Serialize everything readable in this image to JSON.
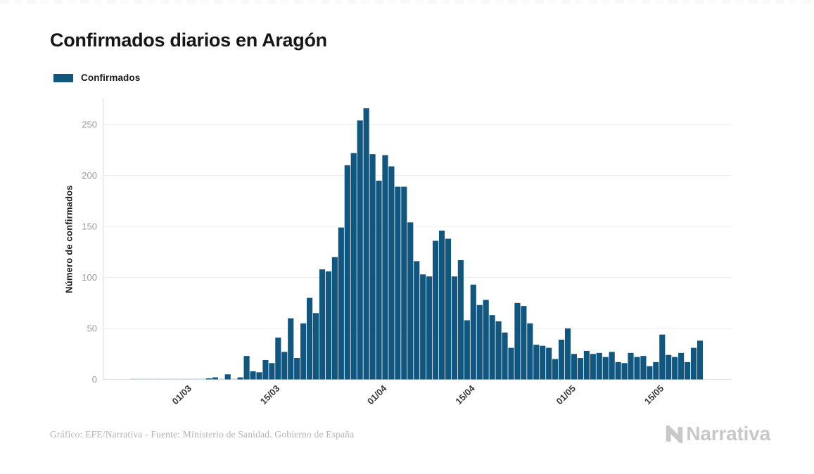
{
  "title": "Confirmados diarios en Aragón",
  "legend": {
    "label": "Confirmados",
    "swatch_color": "#10567E"
  },
  "footer": {
    "credit": "Gráfico: EFE/Narrativa - Fuente: Ministerio de Sanidad. Gobierno de España",
    "brand": "Narrativa",
    "brand_color": "#c8c8c8",
    "brand_mark": "narrativa-n-logo"
  },
  "chart_data": {
    "type": "bar",
    "title": "Confirmados diarios en Aragón",
    "series_name": "Confirmados",
    "xlabel": "",
    "ylabel": "Número de confirmados",
    "bar_color": "#10567E",
    "grid": true,
    "legend_position": "top-left",
    "ylim": [
      0,
      275
    ],
    "y_ticks": [
      0,
      50,
      100,
      150,
      200,
      250
    ],
    "x_tick_labels": [
      "01/03",
      "15/03",
      "01/04",
      "15/04",
      "01/05",
      "15/05"
    ],
    "categories": [
      "21/02",
      "22/02",
      "23/02",
      "24/02",
      "25/02",
      "26/02",
      "27/02",
      "28/02",
      "29/02",
      "01/03",
      "02/03",
      "03/03",
      "04/03",
      "05/03",
      "06/03",
      "07/03",
      "08/03",
      "09/03",
      "10/03",
      "11/03",
      "12/03",
      "13/03",
      "14/03",
      "15/03",
      "16/03",
      "17/03",
      "18/03",
      "19/03",
      "20/03",
      "21/03",
      "22/03",
      "23/03",
      "24/03",
      "25/03",
      "26/03",
      "27/03",
      "28/03",
      "29/03",
      "30/03",
      "31/03",
      "01/04",
      "02/04",
      "03/04",
      "04/04",
      "05/04",
      "06/04",
      "07/04",
      "08/04",
      "09/04",
      "10/04",
      "11/04",
      "12/04",
      "13/04",
      "14/04",
      "15/04",
      "16/04",
      "17/04",
      "18/04",
      "19/04",
      "20/04",
      "21/04",
      "22/04",
      "23/04",
      "24/04",
      "25/04",
      "26/04",
      "27/04",
      "28/04",
      "29/04",
      "30/04",
      "01/05",
      "02/05",
      "03/05",
      "04/05",
      "05/05",
      "06/05",
      "07/05",
      "08/05",
      "09/05",
      "10/05",
      "11/05",
      "12/05",
      "13/05",
      "14/05",
      "15/05",
      "16/05",
      "17/05",
      "18/05",
      "19/05",
      "20/05",
      "21/05"
    ],
    "values": [
      0,
      0,
      0,
      0,
      0,
      0,
      0,
      0,
      0,
      0,
      0,
      0,
      1,
      2,
      0,
      5,
      0,
      2,
      23,
      8,
      7,
      19,
      16,
      41,
      27,
      60,
      21,
      55,
      80,
      65,
      108,
      106,
      120,
      149,
      210,
      222,
      254,
      266,
      221,
      195,
      220,
      209,
      189,
      189,
      154,
      116,
      103,
      101,
      136,
      146,
      138,
      101,
      117,
      58,
      93,
      73,
      78,
      63,
      57,
      46,
      31,
      75,
      72,
      55,
      34,
      33,
      31,
      20,
      39,
      50,
      25,
      21,
      28,
      25,
      26,
      22,
      27,
      17,
      16,
      26,
      22,
      23,
      13,
      17,
      44,
      24,
      22,
      26,
      17,
      31,
      38
    ]
  }
}
